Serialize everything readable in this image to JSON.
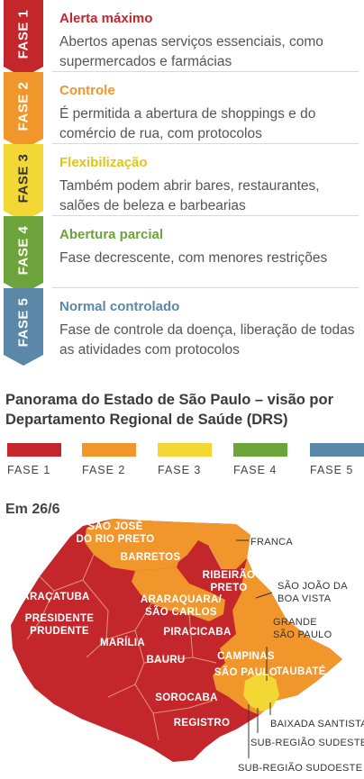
{
  "colors": {
    "fase1": "#c4272b",
    "fase2": "#f0962b",
    "fase3": "#f3d735",
    "fase4": "#6ca33a",
    "fase5": "#5b88a8"
  },
  "phases": [
    {
      "banner": "FASE 1",
      "title": "Alerta máximo",
      "desc": "Abertos apenas serviços essenciais, como supermercados e farmácias"
    },
    {
      "banner": "FASE 2",
      "title": "Controle",
      "desc": "É permitida a abertura de shoppings e do comércio de rua, com protocolos"
    },
    {
      "banner": "FASE 3",
      "title": "Flexibilização",
      "desc": "Também podem abrir bares, restaurantes, salões de beleza e barbearias"
    },
    {
      "banner": "FASE 4",
      "title": "Abertura parcial",
      "desc": "Fase decrescente, com menores restrições"
    },
    {
      "banner": "FASE 5",
      "title": "Normal controlado",
      "desc": "Fase de controle da doença, liberação de todas as atividades com protocolos"
    }
  ],
  "panorama": {
    "title": "Panorama do Estado de São Paulo – visão por Departamento Regional de Saúde (DRS)",
    "legend": [
      "FASE 1",
      "FASE 2",
      "FASE 3",
      "FASE 4",
      "FASE 5"
    ]
  },
  "map": {
    "date_label": "Em 26/6",
    "regions_inside": [
      {
        "lines": [
          "SÃO JOSÉ",
          "DO RIO PRETO"
        ],
        "phase": "FASE 2"
      },
      {
        "lines": [
          "BARRETOS"
        ],
        "phase": "FASE 2"
      },
      {
        "lines": [
          "RIBEIRÃO",
          "PRETO"
        ],
        "phase": "FASE 1"
      },
      {
        "lines": [
          "ARAÇATUBA"
        ],
        "phase": "FASE 1"
      },
      {
        "lines": [
          "ARARAQUARA/",
          "SÃO CARLOS"
        ],
        "phase": "FASE 2"
      },
      {
        "lines": [
          "PRESIDENTE",
          "PRUDENTE"
        ],
        "phase": "FASE 1"
      },
      {
        "lines": [
          "MARÍLIA"
        ],
        "phase": "FASE 1"
      },
      {
        "lines": [
          "PIRACICABA"
        ],
        "phase": "FASE 1"
      },
      {
        "lines": [
          "BAURU"
        ],
        "phase": "FASE 1"
      },
      {
        "lines": [
          "CAMPINAS"
        ],
        "phase": "FASE 2"
      },
      {
        "lines": [
          "SÃO PAULO"
        ],
        "phase": "FASE 3"
      },
      {
        "lines": [
          "TAUBATÉ"
        ],
        "phase": "FASE 2"
      },
      {
        "lines": [
          "SOROCABA"
        ],
        "phase": "FASE 1"
      },
      {
        "lines": [
          "REGISTRO"
        ],
        "phase": "FASE 1"
      }
    ],
    "callouts": [
      {
        "lines": [
          "FRANCA"
        ],
        "phase": "FASE 2"
      },
      {
        "lines": [
          "SÃO JOÃO DA",
          "BOA VISTA"
        ],
        "phase": "FASE 2"
      },
      {
        "lines": [
          "GRANDE",
          "SÃO PAULO"
        ],
        "phase": "FASE 3"
      },
      {
        "lines": [
          "BAIXADA SANTISTA"
        ],
        "phase": "FASE 2"
      },
      {
        "lines": [
          "SUB-REGIÃO SUDESTE"
        ],
        "phase": "FASE 1"
      },
      {
        "lines": [
          "SUB-REGIÃO SUDOESTE"
        ],
        "phase": "FASE 1"
      }
    ]
  }
}
